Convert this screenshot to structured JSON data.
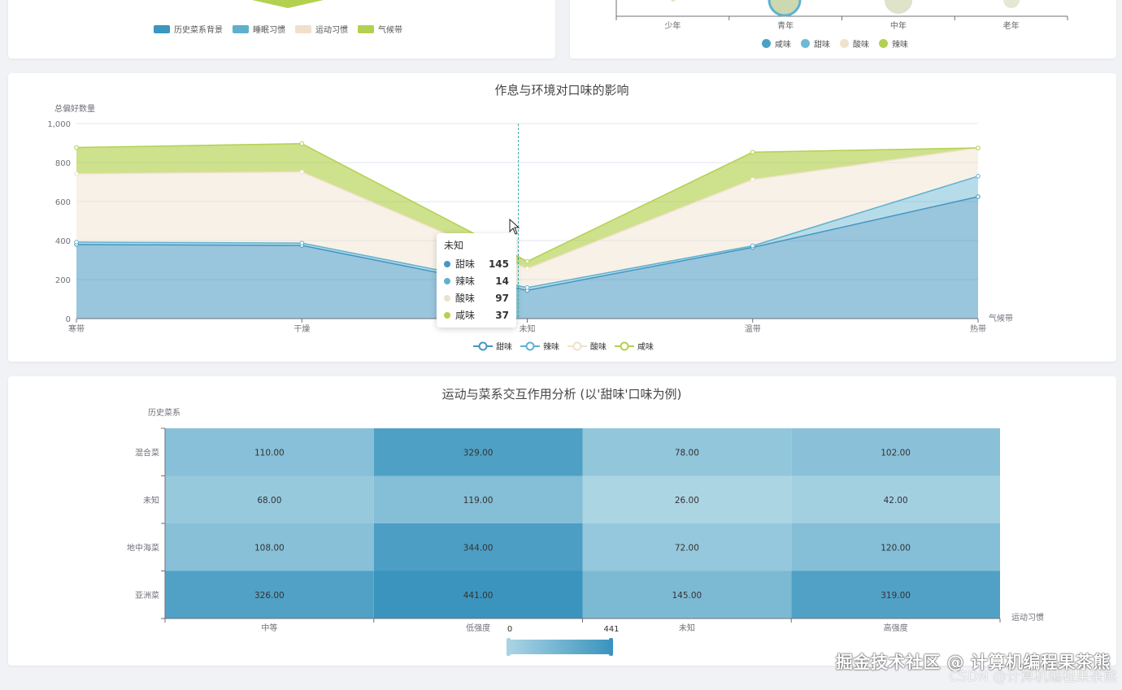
{
  "top_left": {
    "legend": [
      {
        "label": "历史菜系背景",
        "color": "#3c96bd"
      },
      {
        "label": "睡眠习惯",
        "color": "#5fb0cc"
      },
      {
        "label": "运动习惯",
        "color": "#efe1c9"
      },
      {
        "label": "气候带",
        "color": "#b3d150"
      }
    ]
  },
  "top_right": {
    "x_ticks": [
      "少年",
      "青年",
      "中年",
      "老年"
    ],
    "legend": [
      {
        "label": "咸味",
        "color": "#4aa1c6"
      },
      {
        "label": "甜味",
        "color": "#6dbad4"
      },
      {
        "label": "酸味",
        "color": "#efe3cc"
      },
      {
        "label": "辣味",
        "color": "#b3d150"
      }
    ]
  },
  "chart_data": [
    {
      "type": "area",
      "title": "作息与环境对口味的影响",
      "ylabel": "总偏好数量",
      "xlabel": "气候带",
      "categories": [
        "寒带",
        "干燥",
        "未知",
        "温带",
        "热带"
      ],
      "ylim": [
        0,
        1000
      ],
      "yticks": [
        "0",
        "200",
        "400",
        "600",
        "800",
        "1,000"
      ],
      "stacked": true,
      "series": [
        {
          "name": "甜味",
          "color": "#4596c1",
          "values": [
            380,
            375,
            145,
            365,
            625
          ]
        },
        {
          "name": "辣味",
          "color": "#5fb2cf",
          "values": [
            12,
            12,
            14,
            8,
            105
          ]
        },
        {
          "name": "酸味",
          "color": "#efe1c9",
          "values": [
            350,
            365,
            97,
            340,
            145
          ]
        },
        {
          "name": "咸味",
          "color": "#b3d150",
          "values": [
            135,
            145,
            37,
            140,
            0
          ]
        }
      ],
      "legend": [
        "甜味",
        "辣味",
        "酸味",
        "咸味"
      ]
    },
    {
      "type": "heatmap",
      "title": "运动与菜系交互作用分析 (以'甜味'口味为例)",
      "ylabel": "历史菜系",
      "xlabel": "运动习惯",
      "x": [
        "中等",
        "低强度",
        "未知",
        "高强度"
      ],
      "y": [
        "混合菜",
        "未知",
        "地中海菜",
        "亚洲菜"
      ],
      "values": [
        [
          110,
          329,
          78,
          102
        ],
        [
          68,
          119,
          26,
          42
        ],
        [
          108,
          344,
          72,
          120
        ],
        [
          326,
          441,
          145,
          319
        ]
      ],
      "range": [
        0,
        441
      ]
    }
  ],
  "tooltip": {
    "title": "未知",
    "rows": [
      {
        "name": "甜味",
        "value": "145",
        "color": "#4596c1"
      },
      {
        "name": "辣味",
        "value": "14",
        "color": "#5fb2cf"
      },
      {
        "name": "酸味",
        "value": "97",
        "color": "#efe1c9"
      },
      {
        "name": "咸味",
        "value": "37",
        "color": "#b3d150"
      }
    ]
  },
  "visual_map": {
    "min_label": "0",
    "max_label": "441"
  },
  "watermark": {
    "line1": "掘金技术社区 @ 计算机编程果茶熊",
    "line2": "CSDN @计算机编程果茶熊"
  }
}
